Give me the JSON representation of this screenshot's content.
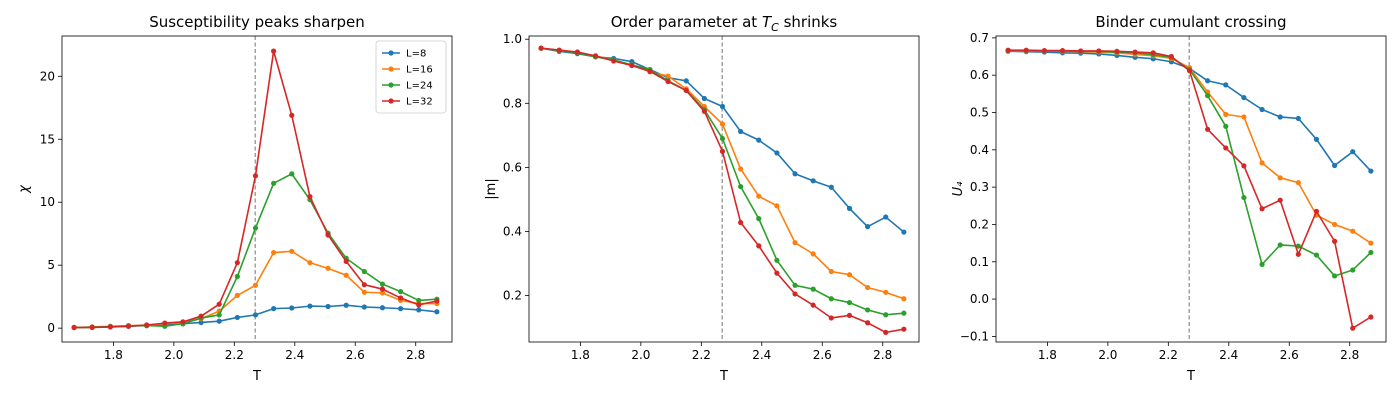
{
  "chart_data": [
    {
      "type": "line",
      "title": "Susceptibility peaks sharpen",
      "xlabel": "T",
      "ylabel": "χ",
      "xlim": [
        1.63,
        2.92
      ],
      "ylim": [
        -1.1,
        23.2
      ],
      "xticks": [
        1.8,
        2.0,
        2.2,
        2.4,
        2.6,
        2.8
      ],
      "xtick_labels": [
        "1.8",
        "2.0",
        "2.2",
        "2.4",
        "2.6",
        "2.8"
      ],
      "yticks": [
        0,
        5,
        10,
        15,
        20
      ],
      "ytick_labels": [
        "0",
        "5",
        "10",
        "15",
        "20"
      ],
      "vline": 2.269,
      "legend": "top-right",
      "x": [
        1.67,
        1.73,
        1.79,
        1.85,
        1.91,
        1.97,
        2.03,
        2.09,
        2.15,
        2.21,
        2.27,
        2.33,
        2.39,
        2.45,
        2.51,
        2.57,
        2.63,
        2.69,
        2.75,
        2.81,
        2.87
      ],
      "series": [
        {
          "name": "L=8",
          "color": "#1f77b4",
          "values": [
            0.05,
            0.07,
            0.1,
            0.15,
            0.2,
            0.25,
            0.35,
            0.45,
            0.55,
            0.85,
            1.05,
            1.55,
            1.6,
            1.75,
            1.72,
            1.82,
            1.68,
            1.62,
            1.55,
            1.45,
            1.3
          ]
        },
        {
          "name": "L=16",
          "color": "#ff7f0e",
          "values": [
            0.05,
            0.1,
            0.15,
            0.2,
            0.25,
            0.35,
            0.45,
            0.75,
            1.35,
            2.6,
            3.4,
            6.0,
            6.1,
            5.2,
            4.75,
            4.2,
            2.85,
            2.8,
            2.2,
            1.95,
            1.95
          ]
        },
        {
          "name": "L=24",
          "color": "#2ca02c",
          "values": [
            0.05,
            0.08,
            0.12,
            0.18,
            0.2,
            0.15,
            0.35,
            0.8,
            1.05,
            4.1,
            7.95,
            11.5,
            12.25,
            10.2,
            7.55,
            5.55,
            4.5,
            3.5,
            2.9,
            2.2,
            2.3
          ]
        },
        {
          "name": "L=32",
          "color": "#d62728",
          "values": [
            0.05,
            0.06,
            0.1,
            0.15,
            0.25,
            0.4,
            0.5,
            0.95,
            1.9,
            5.2,
            12.1,
            22.0,
            16.9,
            10.45,
            7.4,
            5.3,
            3.45,
            3.1,
            2.4,
            1.85,
            2.15
          ]
        }
      ]
    },
    {
      "type": "line",
      "title": "Order parameter at T_C shrinks",
      "xlabel": "T",
      "ylabel": "|m|",
      "xlim": [
        1.63,
        2.92
      ],
      "ylim": [
        0.055,
        1.01
      ],
      "xticks": [
        1.8,
        2.0,
        2.2,
        2.4,
        2.6,
        2.8
      ],
      "xtick_labels": [
        "1.8",
        "2.0",
        "2.2",
        "2.4",
        "2.6",
        "2.8"
      ],
      "yticks": [
        0.2,
        0.4,
        0.6,
        0.8,
        1.0
      ],
      "ytick_labels": [
        "0.2",
        "0.4",
        "0.6",
        "0.8",
        "1.0"
      ],
      "vline": 2.269,
      "x": [
        1.67,
        1.73,
        1.79,
        1.85,
        1.91,
        1.97,
        2.03,
        2.09,
        2.15,
        2.21,
        2.27,
        2.33,
        2.39,
        2.45,
        2.51,
        2.57,
        2.63,
        2.69,
        2.75,
        2.81,
        2.87
      ],
      "series": [
        {
          "name": "L=8",
          "color": "#1f77b4",
          "values": [
            0.972,
            0.962,
            0.955,
            0.945,
            0.94,
            0.93,
            0.905,
            0.88,
            0.87,
            0.815,
            0.79,
            0.712,
            0.685,
            0.645,
            0.58,
            0.558,
            0.538,
            0.472,
            0.415,
            0.445,
            0.398
          ]
        },
        {
          "name": "L=16",
          "color": "#ff7f0e",
          "values": [
            0.972,
            0.965,
            0.958,
            0.948,
            0.935,
            0.92,
            0.898,
            0.885,
            0.845,
            0.79,
            0.735,
            0.595,
            0.51,
            0.48,
            0.365,
            0.33,
            0.275,
            0.265,
            0.225,
            0.21,
            0.19
          ]
        },
        {
          "name": "L=24",
          "color": "#2ca02c",
          "values": [
            0.972,
            0.965,
            0.958,
            0.945,
            0.935,
            0.92,
            0.905,
            0.87,
            0.84,
            0.78,
            0.69,
            0.54,
            0.44,
            0.31,
            0.232,
            0.22,
            0.19,
            0.178,
            0.155,
            0.14,
            0.145
          ]
        },
        {
          "name": "L=32",
          "color": "#d62728",
          "values": [
            0.972,
            0.966,
            0.96,
            0.948,
            0.932,
            0.918,
            0.9,
            0.868,
            0.84,
            0.775,
            0.65,
            0.428,
            0.355,
            0.27,
            0.205,
            0.17,
            0.13,
            0.138,
            0.115,
            0.085,
            0.095
          ]
        }
      ]
    },
    {
      "type": "line",
      "title": "Binder cumulant crossing",
      "xlabel": "T",
      "ylabel": "U₄",
      "xlim": [
        1.63,
        2.92
      ],
      "ylim": [
        -0.115,
        0.705
      ],
      "xticks": [
        1.8,
        2.0,
        2.2,
        2.4,
        2.6,
        2.8
      ],
      "xtick_labels": [
        "1.8",
        "2.0",
        "2.2",
        "2.4",
        "2.6",
        "2.8"
      ],
      "yticks": [
        -0.1,
        0.0,
        0.1,
        0.2,
        0.3,
        0.4,
        0.5,
        0.6,
        0.7
      ],
      "ytick_labels": [
        "−0.1",
        "0.0",
        "0.1",
        "0.2",
        "0.3",
        "0.4",
        "0.5",
        "0.6",
        "0.7"
      ],
      "vline": 2.269,
      "x": [
        1.67,
        1.73,
        1.79,
        1.85,
        1.91,
        1.97,
        2.03,
        2.09,
        2.15,
        2.21,
        2.27,
        2.33,
        2.39,
        2.45,
        2.51,
        2.57,
        2.63,
        2.69,
        2.75,
        2.81,
        2.87
      ],
      "series": [
        {
          "name": "L=8",
          "color": "#1f77b4",
          "values": [
            0.664,
            0.663,
            0.662,
            0.66,
            0.659,
            0.657,
            0.653,
            0.648,
            0.644,
            0.636,
            0.618,
            0.585,
            0.574,
            0.54,
            0.508,
            0.488,
            0.484,
            0.428,
            0.358,
            0.395,
            0.343
          ]
        },
        {
          "name": "L=16",
          "color": "#ff7f0e",
          "values": [
            0.665,
            0.665,
            0.665,
            0.664,
            0.663,
            0.662,
            0.66,
            0.656,
            0.652,
            0.645,
            0.62,
            0.555,
            0.495,
            0.488,
            0.365,
            0.325,
            0.312,
            0.225,
            0.2,
            0.182,
            0.15
          ]
        },
        {
          "name": "L=24",
          "color": "#2ca02c",
          "values": [
            0.666,
            0.666,
            0.665,
            0.665,
            0.664,
            0.664,
            0.662,
            0.66,
            0.655,
            0.648,
            0.615,
            0.545,
            0.463,
            0.272,
            0.093,
            0.145,
            0.142,
            0.118,
            0.062,
            0.078,
            0.125
          ]
        },
        {
          "name": "L=32",
          "color": "#d62728",
          "values": [
            0.667,
            0.667,
            0.666,
            0.666,
            0.665,
            0.665,
            0.664,
            0.662,
            0.66,
            0.65,
            0.612,
            0.455,
            0.405,
            0.357,
            0.242,
            0.265,
            0.12,
            0.235,
            0.155,
            -0.078,
            -0.048
          ]
        }
      ]
    }
  ]
}
